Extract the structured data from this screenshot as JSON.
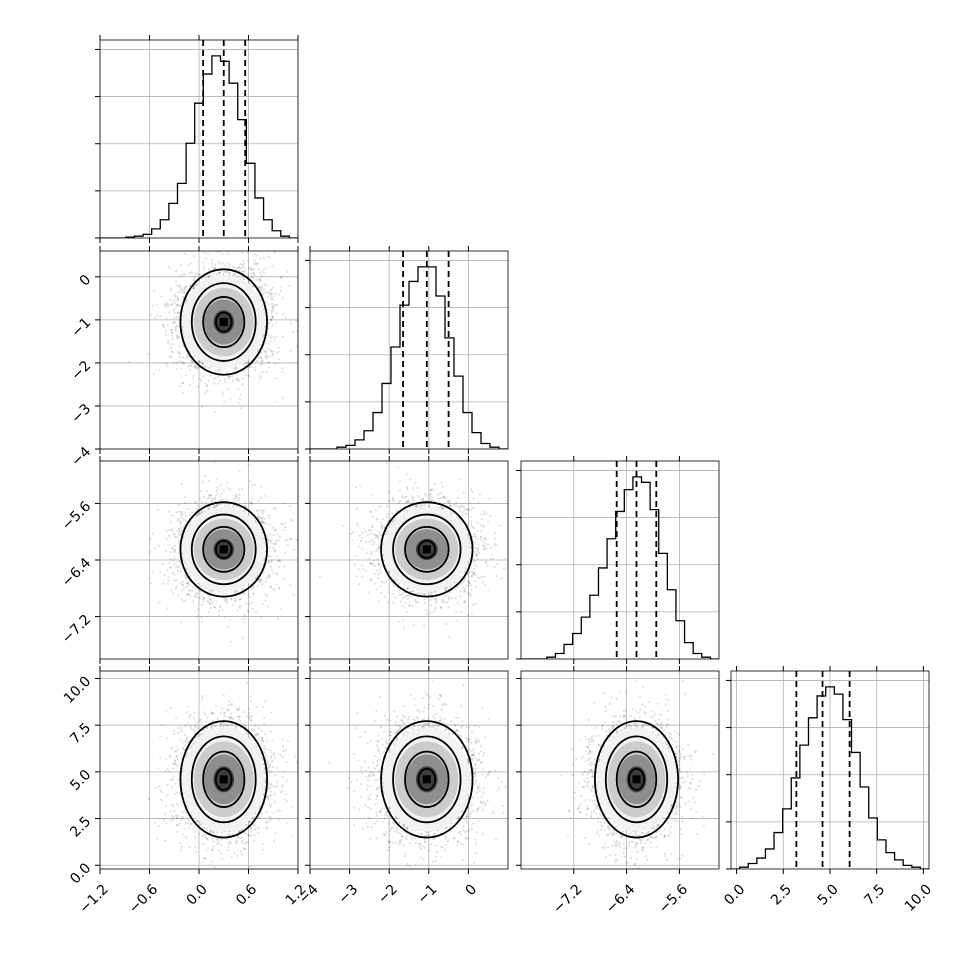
{
  "chart_data": {
    "type": "corner",
    "grid": true,
    "contour_levels": [
      0.25,
      0.55,
      0.85,
      0.95
    ],
    "params": [
      {
        "index": 0,
        "mean": 0.3,
        "std": 0.25,
        "hist_range": [
          -1.2,
          1.2
        ],
        "quantiles": [
          0.05,
          0.3,
          0.56
        ],
        "ticks": [
          -1.2,
          -0.6,
          0.0,
          0.6,
          1.2
        ],
        "tick_labels": [
          "−1.2",
          "−0.6",
          "0.0",
          "0.6",
          "1.2"
        ]
      },
      {
        "index": 1,
        "mean": -1.05,
        "std": 0.55,
        "hist_range": [
          -4.0,
          1.0
        ],
        "quantiles": [
          -1.65,
          -1.05,
          -0.5
        ],
        "ticks": [
          -4,
          -3,
          -2,
          -1,
          0
        ],
        "tick_labels": [
          "−4",
          "−3",
          "−2",
          "−1",
          "0"
        ]
      },
      {
        "index": 2,
        "mean": -6.25,
        "std": 0.3,
        "hist_range": [
          -8.0,
          -5.0
        ],
        "quantiles": [
          -6.55,
          -6.25,
          -5.95
        ],
        "ticks": [
          -7.2,
          -6.4,
          -5.6
        ],
        "tick_labels": [
          "−7.2",
          "−6.4",
          "−5.6"
        ]
      },
      {
        "index": 3,
        "mean": 4.6,
        "std": 1.4,
        "hist_range": [
          -0.3,
          10.3
        ],
        "quantiles": [
          3.2,
          4.6,
          6.05
        ],
        "ticks": [
          0.0,
          2.5,
          5.0,
          7.5,
          10.0
        ],
        "tick_labels": [
          "0.0",
          "2.5",
          "5.0",
          "7.5",
          "10.0"
        ]
      }
    ],
    "row_ranges": {
      "1": [
        -4.0,
        0.6
      ],
      "2": [
        -7.8,
        -5.0
      ],
      "3": [
        -0.2,
        10.4
      ]
    },
    "diagonal_hist_heights": [
      [
        0.0,
        0.0,
        0.0,
        0.005,
        0.01,
        0.02,
        0.05,
        0.1,
        0.19,
        0.3,
        0.52,
        0.74,
        0.9,
        1.0,
        0.97,
        0.85,
        0.65,
        0.41,
        0.22,
        0.1,
        0.04,
        0.01,
        0.0
      ],
      [
        0.0,
        0.0,
        0.0,
        0.01,
        0.02,
        0.05,
        0.1,
        0.2,
        0.36,
        0.56,
        0.79,
        0.92,
        1.0,
        1.0,
        0.84,
        0.61,
        0.4,
        0.2,
        0.09,
        0.03,
        0.01,
        0.0
      ],
      [
        0.0,
        0.0,
        0.0,
        0.01,
        0.03,
        0.08,
        0.14,
        0.23,
        0.35,
        0.5,
        0.66,
        0.81,
        0.93,
        1.0,
        0.97,
        0.82,
        0.58,
        0.38,
        0.21,
        0.09,
        0.03,
        0.01,
        0.0
      ],
      [
        0.0,
        0.01,
        0.03,
        0.06,
        0.11,
        0.2,
        0.33,
        0.5,
        0.68,
        0.83,
        0.95,
        1.0,
        0.96,
        0.82,
        0.64,
        0.45,
        0.28,
        0.16,
        0.09,
        0.05,
        0.02,
        0.01,
        0.0
      ]
    ]
  }
}
